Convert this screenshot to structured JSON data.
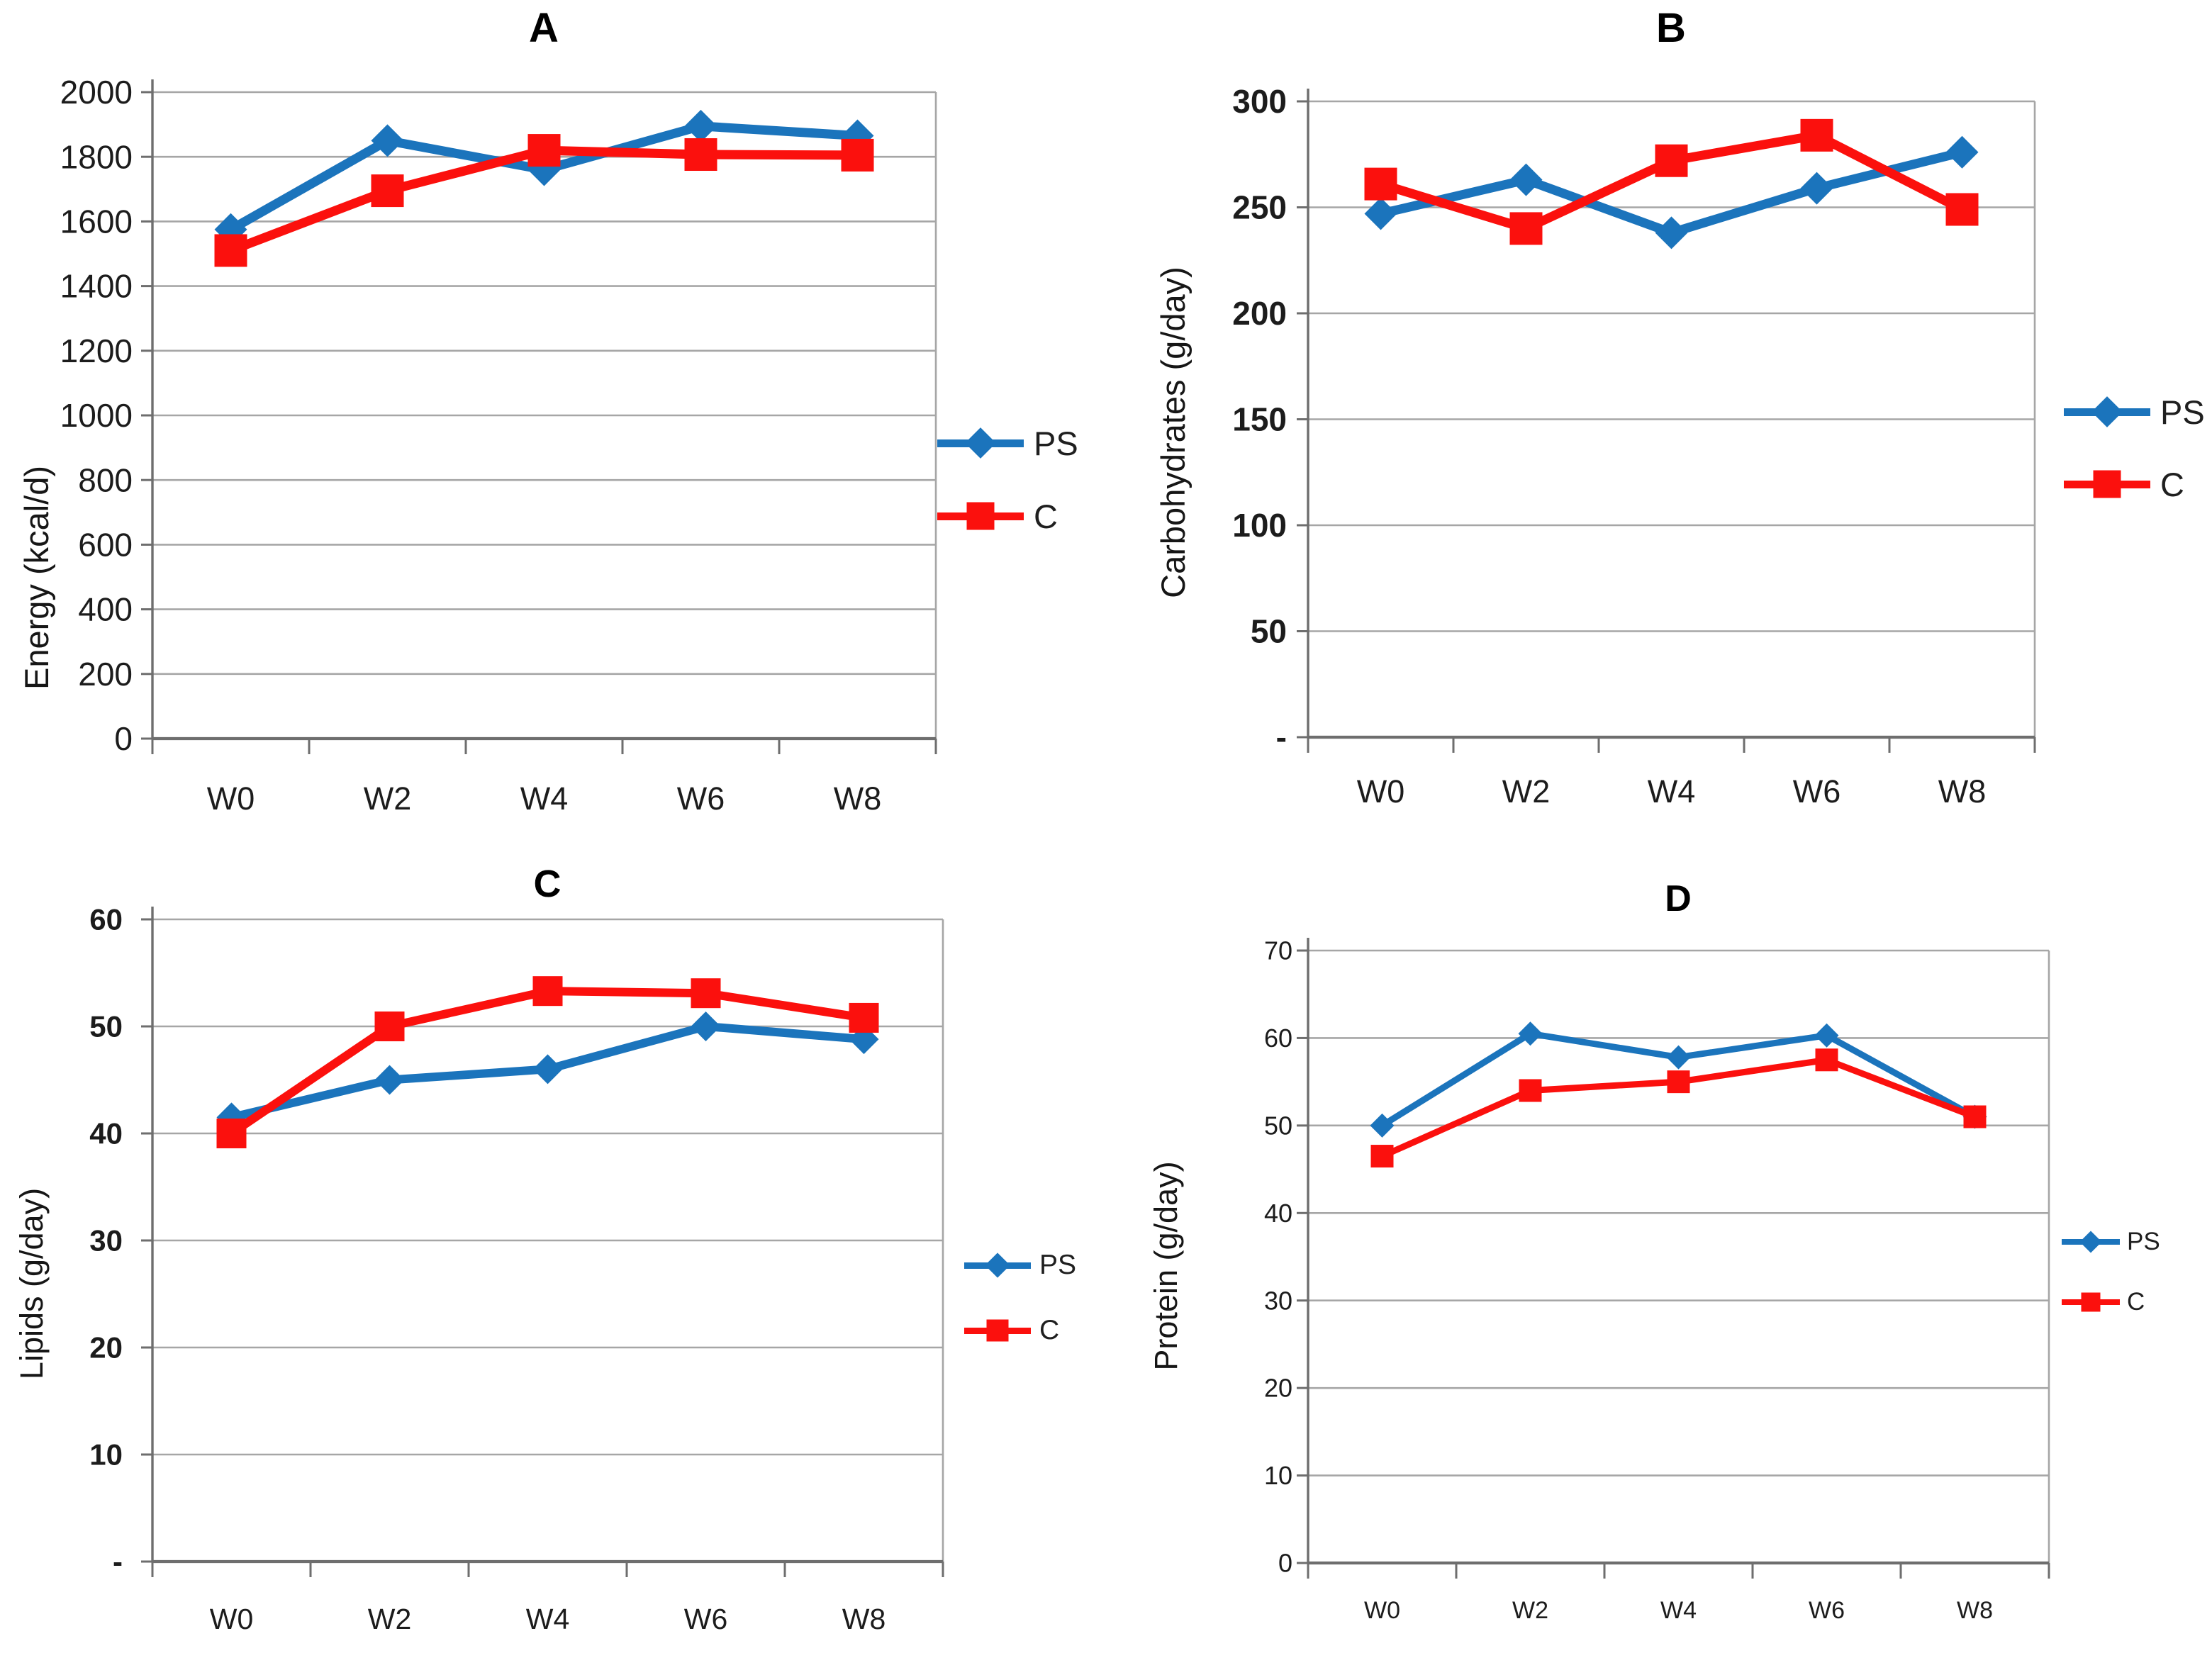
{
  "legend": {
    "ps": "PS",
    "c": "C"
  },
  "colors": {
    "ps": "#1B74BC",
    "c": "#FB100D",
    "grid": "#A6A6A6",
    "axis": "#6E6E6E",
    "text": "#1C1C1C"
  },
  "chart_data": [
    {
      "panel": "A",
      "type": "line",
      "title": "A",
      "ylabel": "Energy (kcal/d)",
      "categories": [
        "W0",
        "W2",
        "W4",
        "W6",
        "W8"
      ],
      "series": [
        {
          "name": "PS",
          "marker": "diamond",
          "values": [
            1575,
            1850,
            1760,
            1895,
            1865
          ]
        },
        {
          "name": "C",
          "marker": "square",
          "values": [
            1510,
            1695,
            1820,
            1807,
            1805
          ]
        }
      ],
      "ylim": [
        0,
        2000
      ],
      "ytick_step": 200,
      "zero_tick_label": "0",
      "grid": "horizontal",
      "legend_position": "right"
    },
    {
      "panel": "B",
      "type": "line",
      "title": "B",
      "ylabel": "Carbohydrates (g/day)",
      "categories": [
        "W0",
        "W2",
        "W4",
        "W6",
        "W8"
      ],
      "series": [
        {
          "name": "PS",
          "marker": "diamond",
          "values": [
            247,
            263,
            238,
            259,
            276
          ]
        },
        {
          "name": "C",
          "marker": "square",
          "values": [
            261,
            240,
            272,
            284,
            249
          ]
        }
      ],
      "ylim": [
        0,
        300
      ],
      "ytick_step": 50,
      "zero_tick_label": "-",
      "grid": "horizontal",
      "legend_position": "right"
    },
    {
      "panel": "C",
      "type": "line",
      "title": "C",
      "ylabel": "Lipids (g/day)",
      "categories": [
        "W0",
        "W2",
        "W4",
        "W6",
        "W8"
      ],
      "series": [
        {
          "name": "PS",
          "marker": "diamond",
          "values": [
            41.5,
            45,
            46,
            50,
            48.8
          ]
        },
        {
          "name": "C",
          "marker": "square",
          "values": [
            40,
            50,
            53.3,
            53.1,
            50.8
          ]
        }
      ],
      "ylim": [
        0,
        60
      ],
      "ytick_step": 10,
      "zero_tick_label": "-",
      "grid": "horizontal",
      "legend_position": "right"
    },
    {
      "panel": "D",
      "type": "line",
      "title": "D",
      "ylabel": "Protein (g/day)",
      "categories": [
        "W0",
        "W2",
        "W4",
        "W6",
        "W8"
      ],
      "series": [
        {
          "name": "PS",
          "marker": "diamond",
          "values": [
            50,
            60.5,
            57.8,
            60.3,
            51
          ]
        },
        {
          "name": "C",
          "marker": "square",
          "values": [
            46.5,
            54,
            55,
            57.5,
            51
          ]
        }
      ],
      "ylim": [
        0,
        70
      ],
      "ytick_step": 10,
      "zero_tick_label": "0",
      "grid": "horizontal",
      "legend_position": "right"
    }
  ]
}
